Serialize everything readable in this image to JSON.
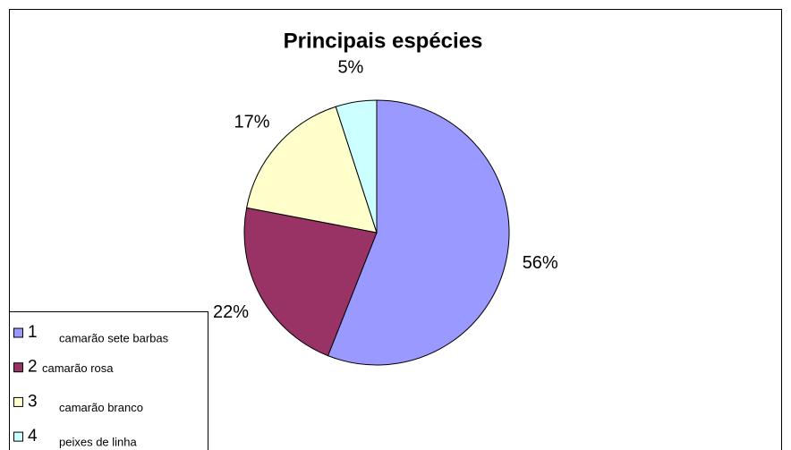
{
  "chart_data": {
    "type": "pie",
    "title": "Principais espécies",
    "categories": [
      "1",
      "2",
      "3",
      "4"
    ],
    "descriptions": [
      "camarão sete barbas",
      "camarão rosa",
      "camarão branco",
      "peixes de linha"
    ],
    "values": [
      56,
      22,
      17,
      5
    ],
    "value_labels": [
      "56%",
      "22%",
      "17%",
      "5%"
    ],
    "colors": [
      "#9999ff",
      "#993366",
      "#ffffcc",
      "#ccffff"
    ]
  }
}
